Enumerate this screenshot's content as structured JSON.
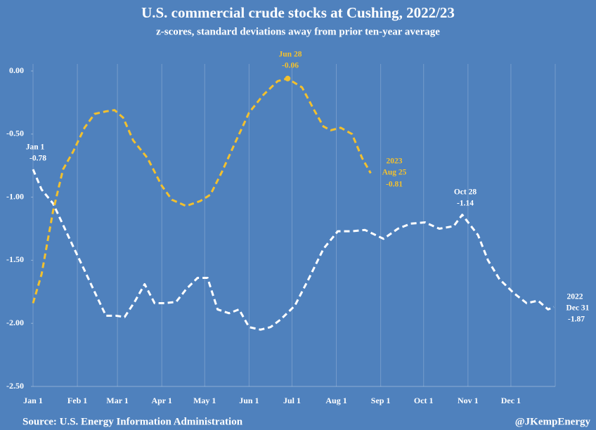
{
  "chart_data": {
    "type": "line",
    "title": "U.S. commercial crude stocks at Cushing, 2022/23",
    "subtitle": "z-scores, standard deviations away from prior ten-year average",
    "source": "Source: U.S. Energy Information Administration",
    "credit": "@JKempEnergy",
    "xlim": [
      0,
      365
    ],
    "xticks": [
      {
        "value": 0,
        "label": "Jan 1"
      },
      {
        "value": 31,
        "label": "Feb 1"
      },
      {
        "value": 59,
        "label": "Mar 1"
      },
      {
        "value": 90,
        "label": "Apr 1"
      },
      {
        "value": 120,
        "label": "May 1"
      },
      {
        "value": 151,
        "label": "Jun 1"
      },
      {
        "value": 181,
        "label": "Jul 1"
      },
      {
        "value": 212,
        "label": "Aug 1"
      },
      {
        "value": 243,
        "label": "Sep 1"
      },
      {
        "value": 273,
        "label": "Oct 1"
      },
      {
        "value": 304,
        "label": "Nov 1"
      },
      {
        "value": 334,
        "label": "Dec 1"
      }
    ],
    "ylim": [
      -2.5,
      0
    ],
    "yticks": [
      {
        "value": 0,
        "label": "0.00"
      },
      {
        "value": -0.5,
        "label": "-0.50"
      },
      {
        "value": -1,
        "label": "-1.00"
      },
      {
        "value": -1.5,
        "label": "-1.50"
      },
      {
        "value": -2,
        "label": "-2.00"
      },
      {
        "value": -2.5,
        "label": "-2.50"
      }
    ],
    "grid": true,
    "series": [
      {
        "name": "2022",
        "color": "#ffffff",
        "x": [
          0,
          6,
          14,
          21,
          28,
          36,
          43,
          51,
          58,
          64,
          71,
          78,
          85,
          92,
          100,
          107,
          115,
          122,
          129,
          137,
          144,
          151,
          159,
          166,
          173,
          183,
          193,
          203,
          213,
          223,
          232,
          245,
          255,
          264,
          274,
          284,
          294,
          300,
          311,
          318,
          326,
          336,
          345,
          353,
          360,
          364
        ],
        "values": [
          -0.78,
          -0.94,
          -1.05,
          -1.22,
          -1.39,
          -1.58,
          -1.75,
          -1.94,
          -1.94,
          -1.95,
          -1.83,
          -1.69,
          -1.84,
          -1.84,
          -1.83,
          -1.73,
          -1.64,
          -1.64,
          -1.89,
          -1.92,
          -1.89,
          -2.03,
          -2.05,
          -2.03,
          -1.97,
          -1.86,
          -1.64,
          -1.41,
          -1.27,
          -1.27,
          -1.26,
          -1.33,
          -1.25,
          -1.21,
          -1.2,
          -1.25,
          -1.23,
          -1.14,
          -1.3,
          -1.5,
          -1.65,
          -1.76,
          -1.84,
          -1.82,
          -1.89,
          -1.87
        ]
      },
      {
        "name": "2023",
        "color": "#f2c02e",
        "x": [
          0,
          6,
          14,
          21,
          28,
          36,
          43,
          51,
          57,
          63,
          70,
          80,
          90,
          97,
          107,
          117,
          124,
          132,
          142,
          151,
          161,
          171,
          178,
          188,
          196,
          203,
          208,
          215,
          223,
          230,
          236
        ],
        "values": [
          -1.84,
          -1.61,
          -1.11,
          -0.78,
          -0.64,
          -0.45,
          -0.34,
          -0.32,
          -0.31,
          -0.37,
          -0.55,
          -0.69,
          -0.91,
          -1.02,
          -1.07,
          -1.03,
          -0.98,
          -0.8,
          -0.55,
          -0.33,
          -0.19,
          -0.08,
          -0.06,
          -0.13,
          -0.3,
          -0.44,
          -0.47,
          -0.45,
          -0.5,
          -0.69,
          -0.81
        ]
      }
    ],
    "annotations": [
      {
        "text": "Jan 1",
        "value": -0.78
      },
      {
        "text": "Jun 28",
        "value": -0.06
      },
      {
        "text": "Aug 25",
        "value": -0.81
      },
      {
        "text": "Oct 28",
        "value": -1.14
      },
      {
        "text": "Dec 31",
        "value": -1.87
      }
    ]
  }
}
